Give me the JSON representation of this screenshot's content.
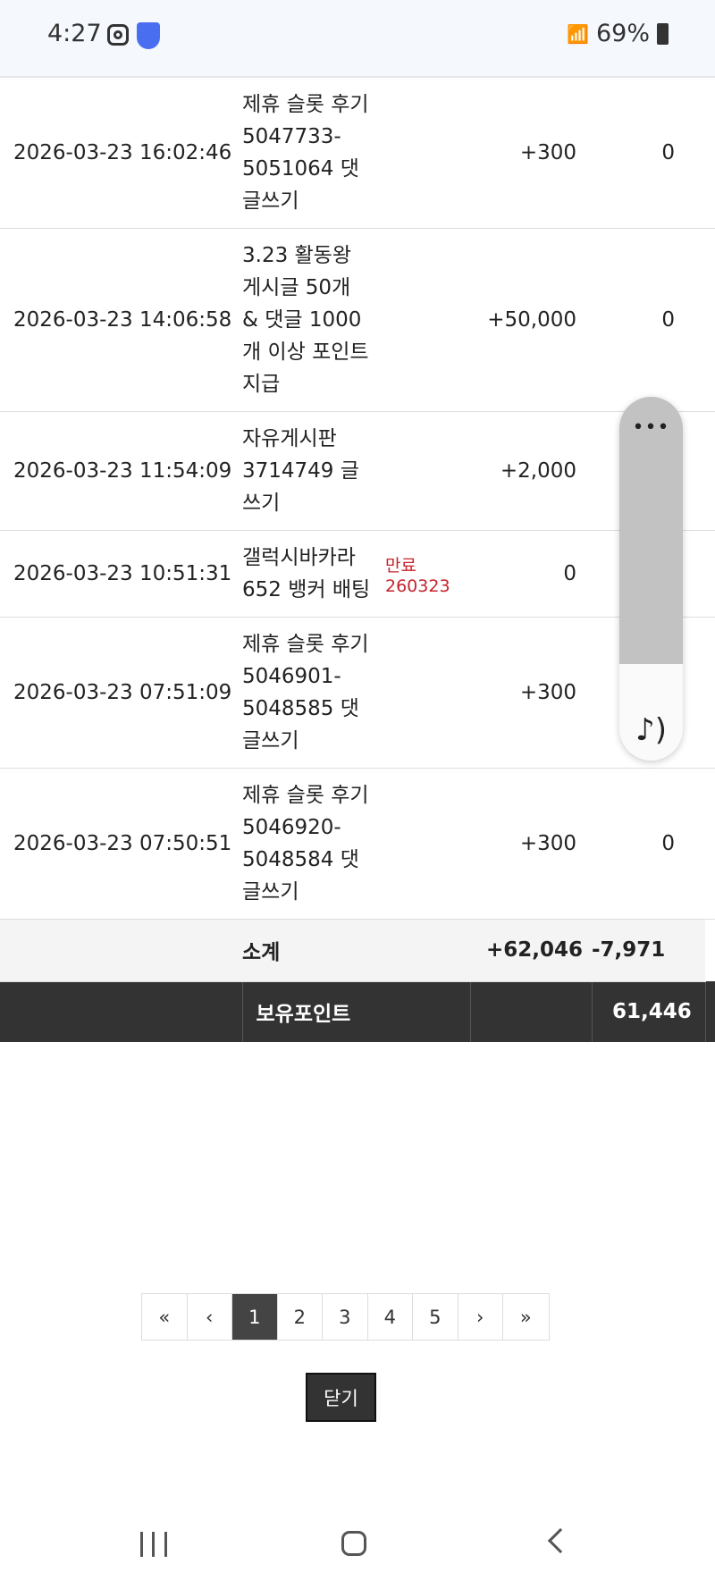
{
  "status_bar": {
    "time": "4:27",
    "battery": "69%",
    "icons": [
      "instagram-icon",
      "shield-app-icon",
      "wifi-icon",
      "signal-icon",
      "battery-icon"
    ]
  },
  "rows": [
    {
      "date": "2026-03-23 16:02:46",
      "desc": "제휴 슬롯 후기 5047733-5051064 댓글쓰기",
      "note": "",
      "plus": "+300",
      "minus": "0"
    },
    {
      "date": "2026-03-23 14:06:58",
      "desc": "3.23 활동왕 게시글 50개 & 댓글 1000개 이상 포인트 지급",
      "note": "",
      "plus": "+50,000",
      "minus": "0"
    },
    {
      "date": "2026-03-23 11:54:09",
      "desc": "자유게시판 3714749 글쓰기",
      "note": "",
      "plus": "+2,000",
      "minus": ""
    },
    {
      "date": "2026-03-23 10:51:31",
      "desc": "갤럭시바카라 652 뱅커 배팅",
      "note": "만료260323",
      "plus": "0",
      "minus": "-"
    },
    {
      "date": "2026-03-23 07:51:09",
      "desc": "제휴 슬롯 후기 5046901-5048585 댓글쓰기",
      "note": "",
      "plus": "+300",
      "minus": "0"
    },
    {
      "date": "2026-03-23 07:50:51",
      "desc": "제휴 슬롯 후기 5046920-5048584 댓글쓰기",
      "note": "",
      "plus": "+300",
      "minus": "0"
    }
  ],
  "subtotal": {
    "label": "소계",
    "plus": "+62,046",
    "minus": "-7,971"
  },
  "holding": {
    "label": "보유포인트",
    "value": "61,446"
  },
  "pagination": {
    "first": "«",
    "prev": "‹",
    "pages": [
      "1",
      "2",
      "3",
      "4",
      "5"
    ],
    "current": "1",
    "next": "›",
    "last": "»"
  },
  "close_label": "닫기",
  "overlay": {
    "menu": "•••",
    "icon": "music-note-icon"
  }
}
